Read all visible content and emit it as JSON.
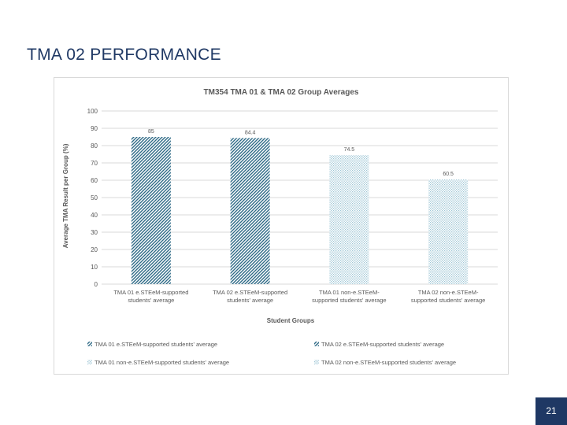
{
  "slide": {
    "title": "TMA 02 PERFORMANCE",
    "page_number": "21"
  },
  "colors": {
    "title": "#1f3864",
    "supported": "#2e6a86",
    "non_supported": "#9ec6d6",
    "grid": "#d9d9d9",
    "axis_text": "#595959",
    "page_box": "#1f3864"
  },
  "chart_data": {
    "type": "bar",
    "title": "TM354 TMA 01 & TMA 02 Group Averages",
    "xlabel": "Student Groups",
    "ylabel": "Average TMA Result per Group (%)",
    "ylim": [
      0,
      100
    ],
    "yticks": [
      0,
      10,
      20,
      30,
      40,
      50,
      60,
      70,
      80,
      90,
      100
    ],
    "grid": true,
    "legend_position": "bottom",
    "categories": [
      [
        "TMA 01 e.STEeM-supported",
        "students' average"
      ],
      [
        "TMA 02 e.STEeM-supported",
        "students' average"
      ],
      [
        "TMA 01 non-e.STEeM-",
        "supported students' average"
      ],
      [
        "TMA 02 non-e.STEeM-",
        "supported students' average"
      ]
    ],
    "values": [
      85,
      84.4,
      74.5,
      60.5
    ],
    "value_labels": [
      "85",
      "84.4",
      "74.5",
      "60.5"
    ],
    "patterns": [
      "supported",
      "supported",
      "non_supported",
      "non_supported"
    ],
    "legend": [
      "TMA 01 e.STEeM-supported students' average",
      "TMA 02 e.STEeM-supported students' average",
      "TMA 01 non-e.STEeM-supported students' average",
      "TMA 02 non-e.STEeM-supported students' average"
    ]
  }
}
